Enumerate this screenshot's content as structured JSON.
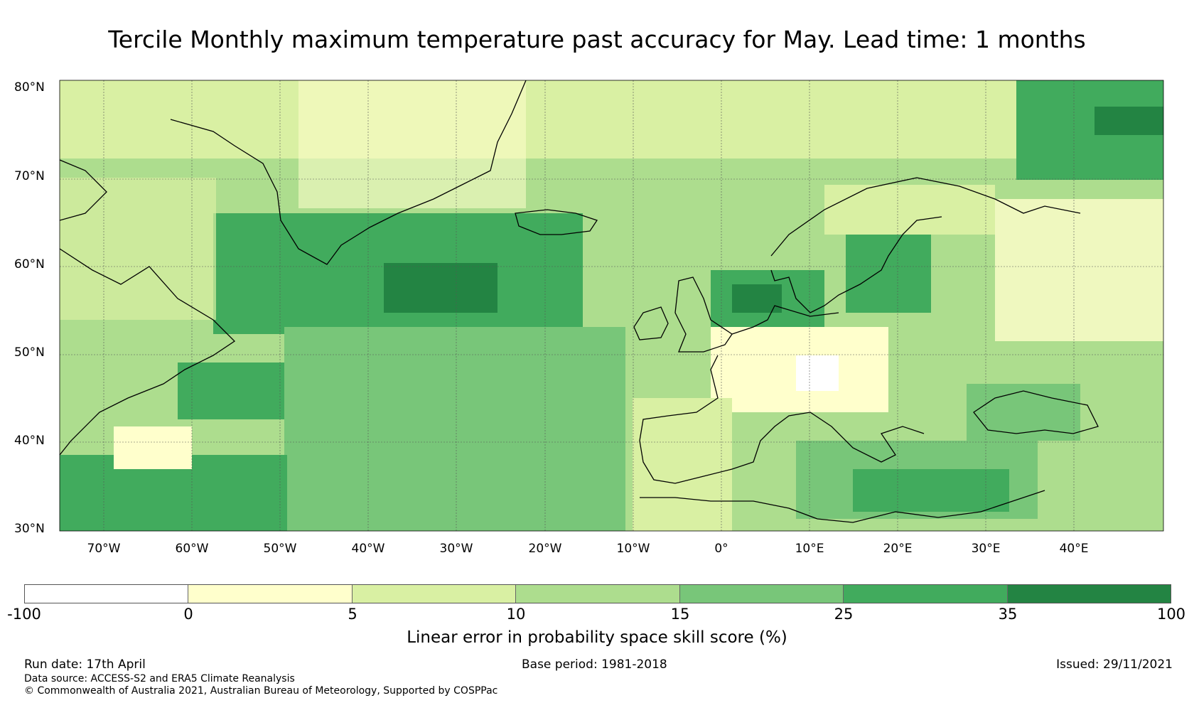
{
  "title": "Tercile Monthly maximum temperature past accuracy for May. Lead time: 1 months",
  "map": {
    "lat_labels": [
      "80°N",
      "70°N",
      "60°N",
      "50°N",
      "40°N",
      "30°N"
    ],
    "lon_labels": [
      "70°W",
      "60°W",
      "50°W",
      "40°W",
      "30°W",
      "20°W",
      "10°W",
      "0°",
      "10°E",
      "20°E",
      "30°E",
      "40°E"
    ]
  },
  "colorbar": {
    "ticks": [
      "-100",
      "0",
      "5",
      "10",
      "15",
      "25",
      "35",
      "100"
    ],
    "colors": [
      "#ffffff",
      "#ffffcc",
      "#d9f0a3",
      "#addd8e",
      "#78c679",
      "#41ab5d",
      "#238443"
    ],
    "label": "Linear error in probability space skill score (%)"
  },
  "footer": {
    "run_date": "Run date: 17th April",
    "base_period": "Base period: 1981-2018",
    "issued": "Issued: 29/11/2021",
    "data_source": "Data source: ACCESS-S2 and ERA5 Climate Reanalysis",
    "copyright": "© Commonwealth of Australia 2021, Australian Bureau of Meteorology, Supported by COSPPac"
  }
}
